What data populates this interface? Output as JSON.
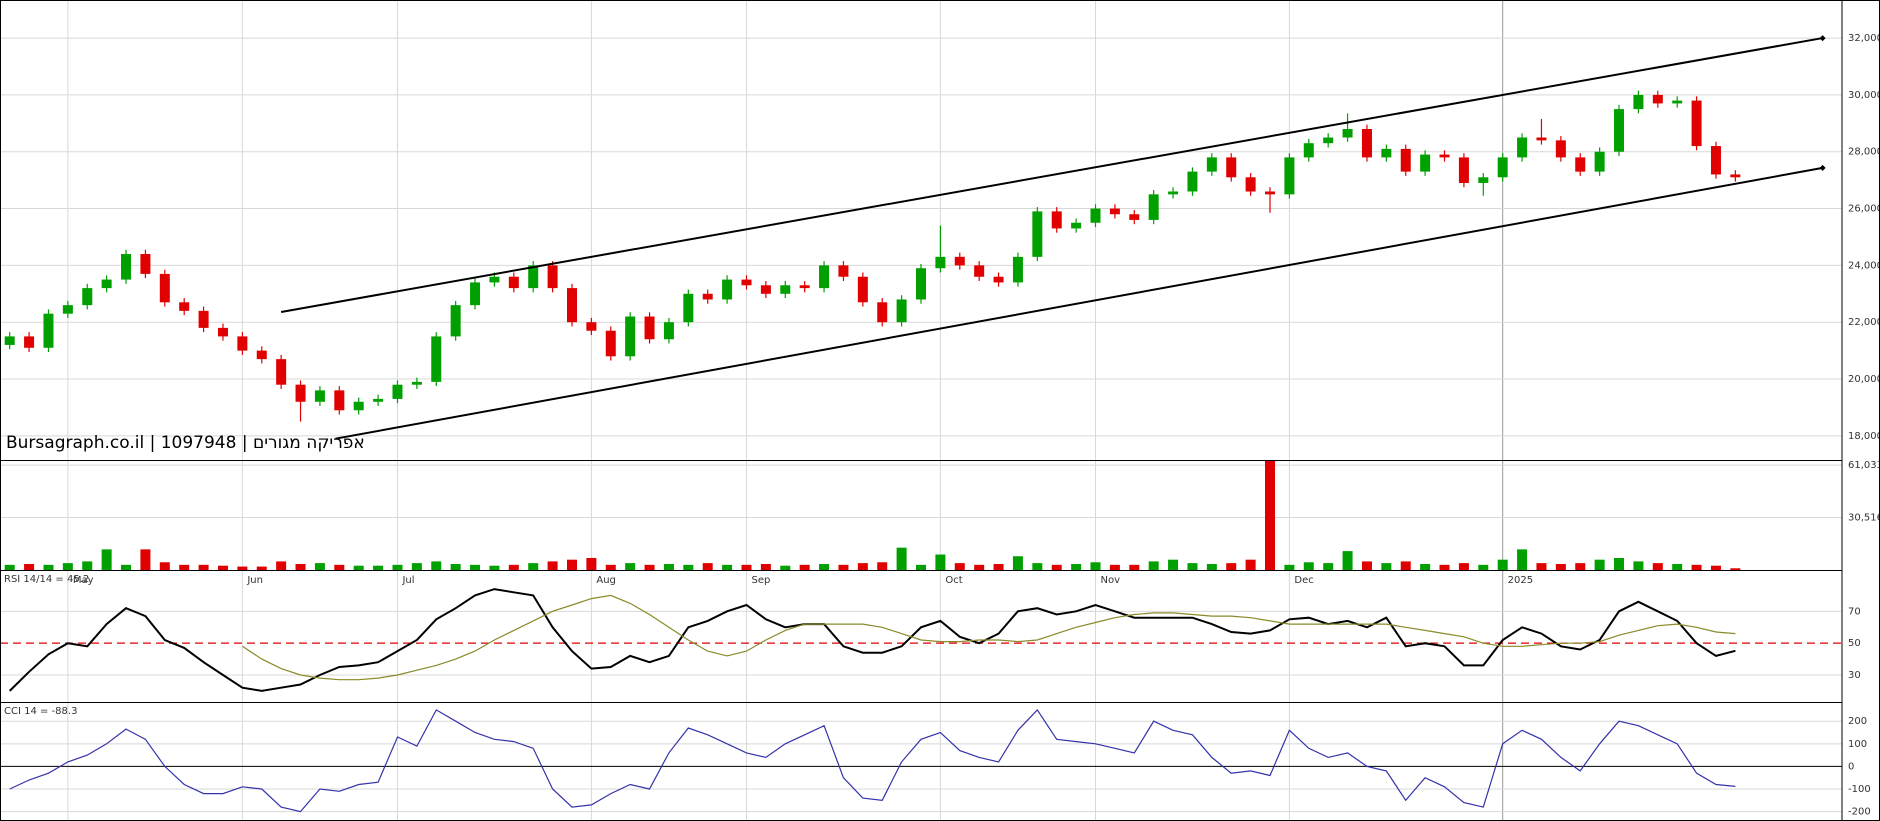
{
  "chart_data": [
    {
      "type": "candlestick",
      "watermark": "Bursagraph.co.il | 1097948 | אפריקה מגורים",
      "up_color": "#00a000",
      "down_color": "#e00000",
      "xlim": [
        -0.5,
        94.5
      ],
      "xticks": [
        {
          "value": 3,
          "label": "May"
        },
        {
          "value": 12,
          "label": "Jun"
        },
        {
          "value": 20,
          "label": "Jul"
        },
        {
          "value": 30,
          "label": "Aug"
        },
        {
          "value": 38,
          "label": "Sep"
        },
        {
          "value": 48,
          "label": "Oct"
        },
        {
          "value": 56,
          "label": "Nov"
        },
        {
          "value": 66,
          "label": "Dec"
        },
        {
          "value": 77,
          "label": "2025"
        }
      ],
      "ylim": [
        17150,
        33340
      ],
      "yticks": [
        {
          "value": 18000,
          "label": "18,000"
        },
        {
          "value": 20000,
          "label": "20,000"
        },
        {
          "value": 22000,
          "label": "22,000"
        },
        {
          "value": 24000,
          "label": "24,000"
        },
        {
          "value": 26000,
          "label": "26,000"
        },
        {
          "value": 28000,
          "label": "28,000"
        },
        {
          "value": 30000,
          "label": "30,000"
        },
        {
          "value": 32000,
          "label": "32,000"
        }
      ],
      "grid": true,
      "open": [
        21200,
        21500,
        21100,
        22300,
        22600,
        23200,
        23500,
        24400,
        23700,
        22700,
        22400,
        21800,
        21500,
        21000,
        20700,
        19800,
        19200,
        19600,
        18900,
        19200,
        19300,
        19800,
        19900,
        21500,
        22600,
        23400,
        23600,
        23200,
        24000,
        23200,
        22000,
        21700,
        20800,
        22200,
        21400,
        22000,
        23000,
        22800,
        23500,
        23300,
        23000,
        23300,
        23200,
        24000,
        23600,
        22700,
        22000,
        22800,
        23900,
        24300,
        24000,
        23600,
        23400,
        24300,
        25900,
        25300,
        25500,
        26000,
        25800,
        25600,
        26500,
        26600,
        27300,
        27800,
        27100,
        26600,
        26500,
        27800,
        28300,
        28500,
        28800,
        27800,
        28100,
        27300,
        27900,
        27800,
        26900,
        27100,
        27800,
        28500,
        28400,
        27800,
        27300,
        28000,
        29500,
        30000,
        29700,
        29800,
        28200,
        27200
      ],
      "high": [
        21650,
        21650,
        22450,
        22750,
        23350,
        23650,
        24550,
        24550,
        23850,
        22850,
        22550,
        21950,
        21650,
        21150,
        20850,
        19950,
        19750,
        19750,
        19350,
        19450,
        19950,
        20050,
        21650,
        22750,
        23550,
        23750,
        23750,
        24150,
        24150,
        23350,
        22150,
        21850,
        22350,
        22350,
        22150,
        23150,
        23150,
        23650,
        23650,
        23450,
        23450,
        23450,
        24150,
        24150,
        23750,
        22850,
        22950,
        24050,
        25400,
        24450,
        24150,
        23750,
        24450,
        26050,
        26050,
        25650,
        26150,
        26150,
        25950,
        26650,
        26750,
        27450,
        27950,
        27950,
        27250,
        26750,
        27950,
        28450,
        28650,
        29350,
        28950,
        28250,
        28250,
        28050,
        28050,
        27950,
        27250,
        27950,
        28650,
        29150,
        28550,
        27950,
        28150,
        29650,
        30150,
        30150,
        29950,
        29950,
        28350,
        27350
      ],
      "low": [
        21050,
        20950,
        20950,
        22150,
        22450,
        23050,
        23350,
        23550,
        22550,
        22250,
        21650,
        21350,
        20850,
        20550,
        19650,
        18500,
        19050,
        18750,
        18750,
        19050,
        19150,
        19650,
        19750,
        21350,
        22450,
        23250,
        23050,
        23050,
        23050,
        21850,
        21550,
        20650,
        20650,
        21250,
        21250,
        21850,
        22650,
        22650,
        23150,
        22850,
        22850,
        23050,
        23050,
        23450,
        22550,
        21850,
        21850,
        22650,
        23750,
        23850,
        23450,
        23250,
        23250,
        24150,
        25150,
        25150,
        25350,
        25650,
        25450,
        25450,
        26350,
        26450,
        27150,
        26950,
        26450,
        25850,
        26350,
        27650,
        28150,
        28350,
        27650,
        27650,
        27150,
        27150,
        27650,
        26750,
        26450,
        26950,
        27650,
        28250,
        27650,
        27150,
        27150,
        27850,
        29350,
        29550,
        29550,
        28050,
        27050,
        26950
      ],
      "close": [
        21500,
        21100,
        22300,
        22600,
        23200,
        23500,
        24400,
        23700,
        22700,
        22400,
        21800,
        21500,
        21000,
        20700,
        19800,
        19200,
        19600,
        18900,
        19200,
        19300,
        19800,
        19900,
        21500,
        22600,
        23400,
        23600,
        23200,
        24000,
        23200,
        22000,
        21700,
        20800,
        22200,
        21400,
        22000,
        23000,
        22800,
        23500,
        23300,
        23000,
        23300,
        23200,
        24000,
        23600,
        22700,
        22000,
        22800,
        23900,
        24300,
        24000,
        23600,
        23400,
        24300,
        25900,
        25300,
        25500,
        26000,
        25800,
        25600,
        26500,
        26600,
        27300,
        27800,
        27100,
        26600,
        26500,
        27800,
        28300,
        28500,
        28800,
        27800,
        28100,
        27300,
        27900,
        27800,
        26900,
        27100,
        27800,
        28500,
        28400,
        27800,
        27300,
        28000,
        29500,
        30000,
        29700,
        29800,
        28200,
        27200,
        27100
      ],
      "channel_lines": [
        {
          "start": [
            14,
            22360
          ],
          "end": [
            93.5,
            32000
          ]
        },
        {
          "start": [
            16.8,
            17900
          ],
          "end": [
            93.5,
            27430
          ]
        }
      ]
    },
    {
      "type": "bar",
      "ylim": [
        0,
        64000
      ],
      "yticks": [
        {
          "value": 30516,
          "label": "30,516"
        },
        {
          "value": 61033,
          "label": "61,033"
        }
      ],
      "values": [
        3000,
        3500,
        3000,
        4000,
        5000,
        12000,
        3000,
        12000,
        4500,
        3000,
        3000,
        2500,
        2000,
        2000,
        5000,
        3500,
        4000,
        3000,
        2500,
        2500,
        3000,
        4000,
        5000,
        3500,
        3000,
        2500,
        3000,
        4000,
        5000,
        6000,
        7000,
        3000,
        4000,
        3000,
        3500,
        3000,
        4000,
        3000,
        3000,
        3500,
        2500,
        3000,
        3500,
        3000,
        4000,
        4500,
        13000,
        3000,
        9000,
        4000,
        3000,
        3500,
        8000,
        4000,
        3000,
        3500,
        4500,
        3000,
        3000,
        5000,
        6000,
        4000,
        3500,
        4000,
        6000,
        64000,
        3000,
        4500,
        4000,
        11000,
        5000,
        4000,
        5000,
        3500,
        3000,
        4000,
        3000,
        6000,
        12000,
        4000,
        3500,
        4000,
        6000,
        7000,
        5000,
        4000,
        3500,
        3000,
        2500,
        1000
      ]
    },
    {
      "type": "line",
      "label": "RSI 14/14 = 45.2",
      "ylim": [
        13,
        96
      ],
      "yticks": [
        30,
        50,
        70
      ],
      "reference_line": {
        "value": 50,
        "color": "#e00000"
      },
      "series": [
        {
          "color": "#000000",
          "values": [
            20,
            32,
            43,
            50,
            48,
            62,
            72,
            67,
            52,
            47,
            38,
            30,
            22,
            20,
            22,
            24,
            30,
            35,
            36,
            38,
            45,
            52,
            65,
            72,
            80,
            84,
            82,
            80,
            60,
            45,
            34,
            35,
            42,
            38,
            42,
            60,
            64,
            70,
            74,
            65,
            60,
            62,
            62,
            48,
            44,
            44,
            48,
            60,
            64,
            54,
            50,
            56,
            70,
            72,
            68,
            70,
            74,
            70,
            66,
            66,
            66,
            66,
            62,
            57,
            56,
            58,
            65,
            66,
            62,
            64,
            60,
            66,
            48,
            50,
            48,
            36,
            36,
            52,
            60,
            56,
            48,
            46,
            52,
            70,
            76,
            70,
            64,
            50,
            42,
            45.2
          ]
        },
        {
          "color": "#8a8a2a",
          "values": [
            null,
            null,
            null,
            null,
            null,
            null,
            null,
            null,
            null,
            null,
            null,
            null,
            48,
            40,
            34,
            30,
            28,
            27,
            27,
            28,
            30,
            33,
            36,
            40,
            45,
            52,
            58,
            64,
            70,
            74,
            78,
            80,
            75,
            68,
            60,
            52,
            45,
            42,
            45,
            52,
            58,
            62,
            62,
            62,
            62,
            60,
            56,
            52,
            51,
            51,
            52,
            52,
            51,
            52,
            56,
            60,
            63,
            66,
            68,
            69,
            69,
            68,
            67,
            67,
            66,
            64,
            62,
            62,
            62,
            62,
            62,
            62,
            60,
            58,
            56,
            54,
            50,
            48,
            48,
            49,
            50,
            50,
            51,
            55,
            58,
            61,
            62,
            60,
            57,
            56
          ]
        }
      ]
    },
    {
      "type": "line",
      "label": "CCI 14 = -88.3",
      "ylim": [
        -237,
        285
      ],
      "yticks": [
        -200,
        -100,
        0,
        100,
        200
      ],
      "zero_line": true,
      "series": [
        {
          "color": "#3333aa",
          "values": [
            -100,
            -60,
            -30,
            20,
            50,
            100,
            165,
            120,
            0,
            -80,
            -120,
            -120,
            -90,
            -100,
            -180,
            -200,
            -100,
            -110,
            -80,
            -70,
            130,
            90,
            250,
            200,
            150,
            120,
            110,
            80,
            -100,
            -180,
            -170,
            -120,
            -80,
            -100,
            60,
            170,
            140,
            100,
            60,
            40,
            100,
            140,
            180,
            -50,
            -140,
            -150,
            20,
            120,
            150,
            70,
            40,
            20,
            160,
            250,
            120,
            110,
            100,
            80,
            60,
            200,
            160,
            140,
            40,
            -30,
            -20,
            -40,
            160,
            80,
            40,
            60,
            0,
            -20,
            -150,
            -50,
            -90,
            -160,
            -180,
            100,
            160,
            120,
            40,
            -20,
            100,
            200,
            180,
            140,
            100,
            -30,
            -80,
            -88.3
          ]
        }
      ]
    }
  ]
}
